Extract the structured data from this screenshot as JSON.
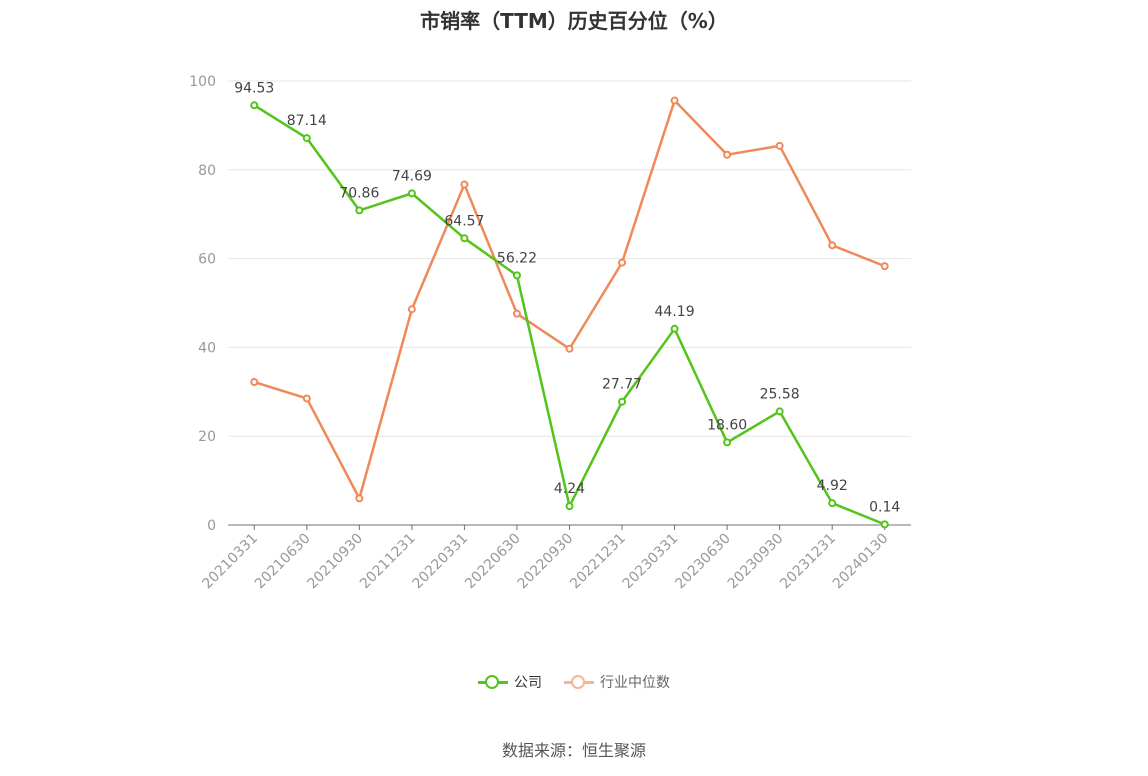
{
  "chart_data": {
    "type": "line",
    "title": "市销率（TTM）历史百分位（%）",
    "categories": [
      "20210331",
      "20210630",
      "20210930",
      "20211231",
      "20220331",
      "20220630",
      "20220930",
      "20221231",
      "20230331",
      "20230630",
      "20230930",
      "20231231",
      "20240130"
    ],
    "series": [
      {
        "name": "公司",
        "color": "#52c41a",
        "values": [
          94.53,
          87.14,
          70.86,
          74.69,
          64.57,
          56.22,
          4.24,
          27.77,
          44.19,
          18.6,
          25.58,
          4.92,
          0.14
        ],
        "labels": [
          "94.53",
          "87.14",
          "70.86",
          "74.69",
          "64.57",
          "56.22",
          "4.24",
          "27.77",
          "44.19",
          "18.60",
          "25.58",
          "4.92",
          "0.14"
        ]
      },
      {
        "name": "行业中位数",
        "color": "#f0895a",
        "values": [
          32.2,
          28.5,
          6.0,
          48.6,
          76.7,
          47.6,
          39.7,
          59.1,
          95.6,
          83.4,
          85.4,
          63.0,
          58.3
        ]
      }
    ],
    "ylim": [
      0,
      100
    ],
    "yticks": [
      "0",
      "20",
      "40",
      "60",
      "80",
      "100"
    ],
    "grid": true,
    "legend": "bottom"
  },
  "source_text": "数据来源：恒生聚源"
}
